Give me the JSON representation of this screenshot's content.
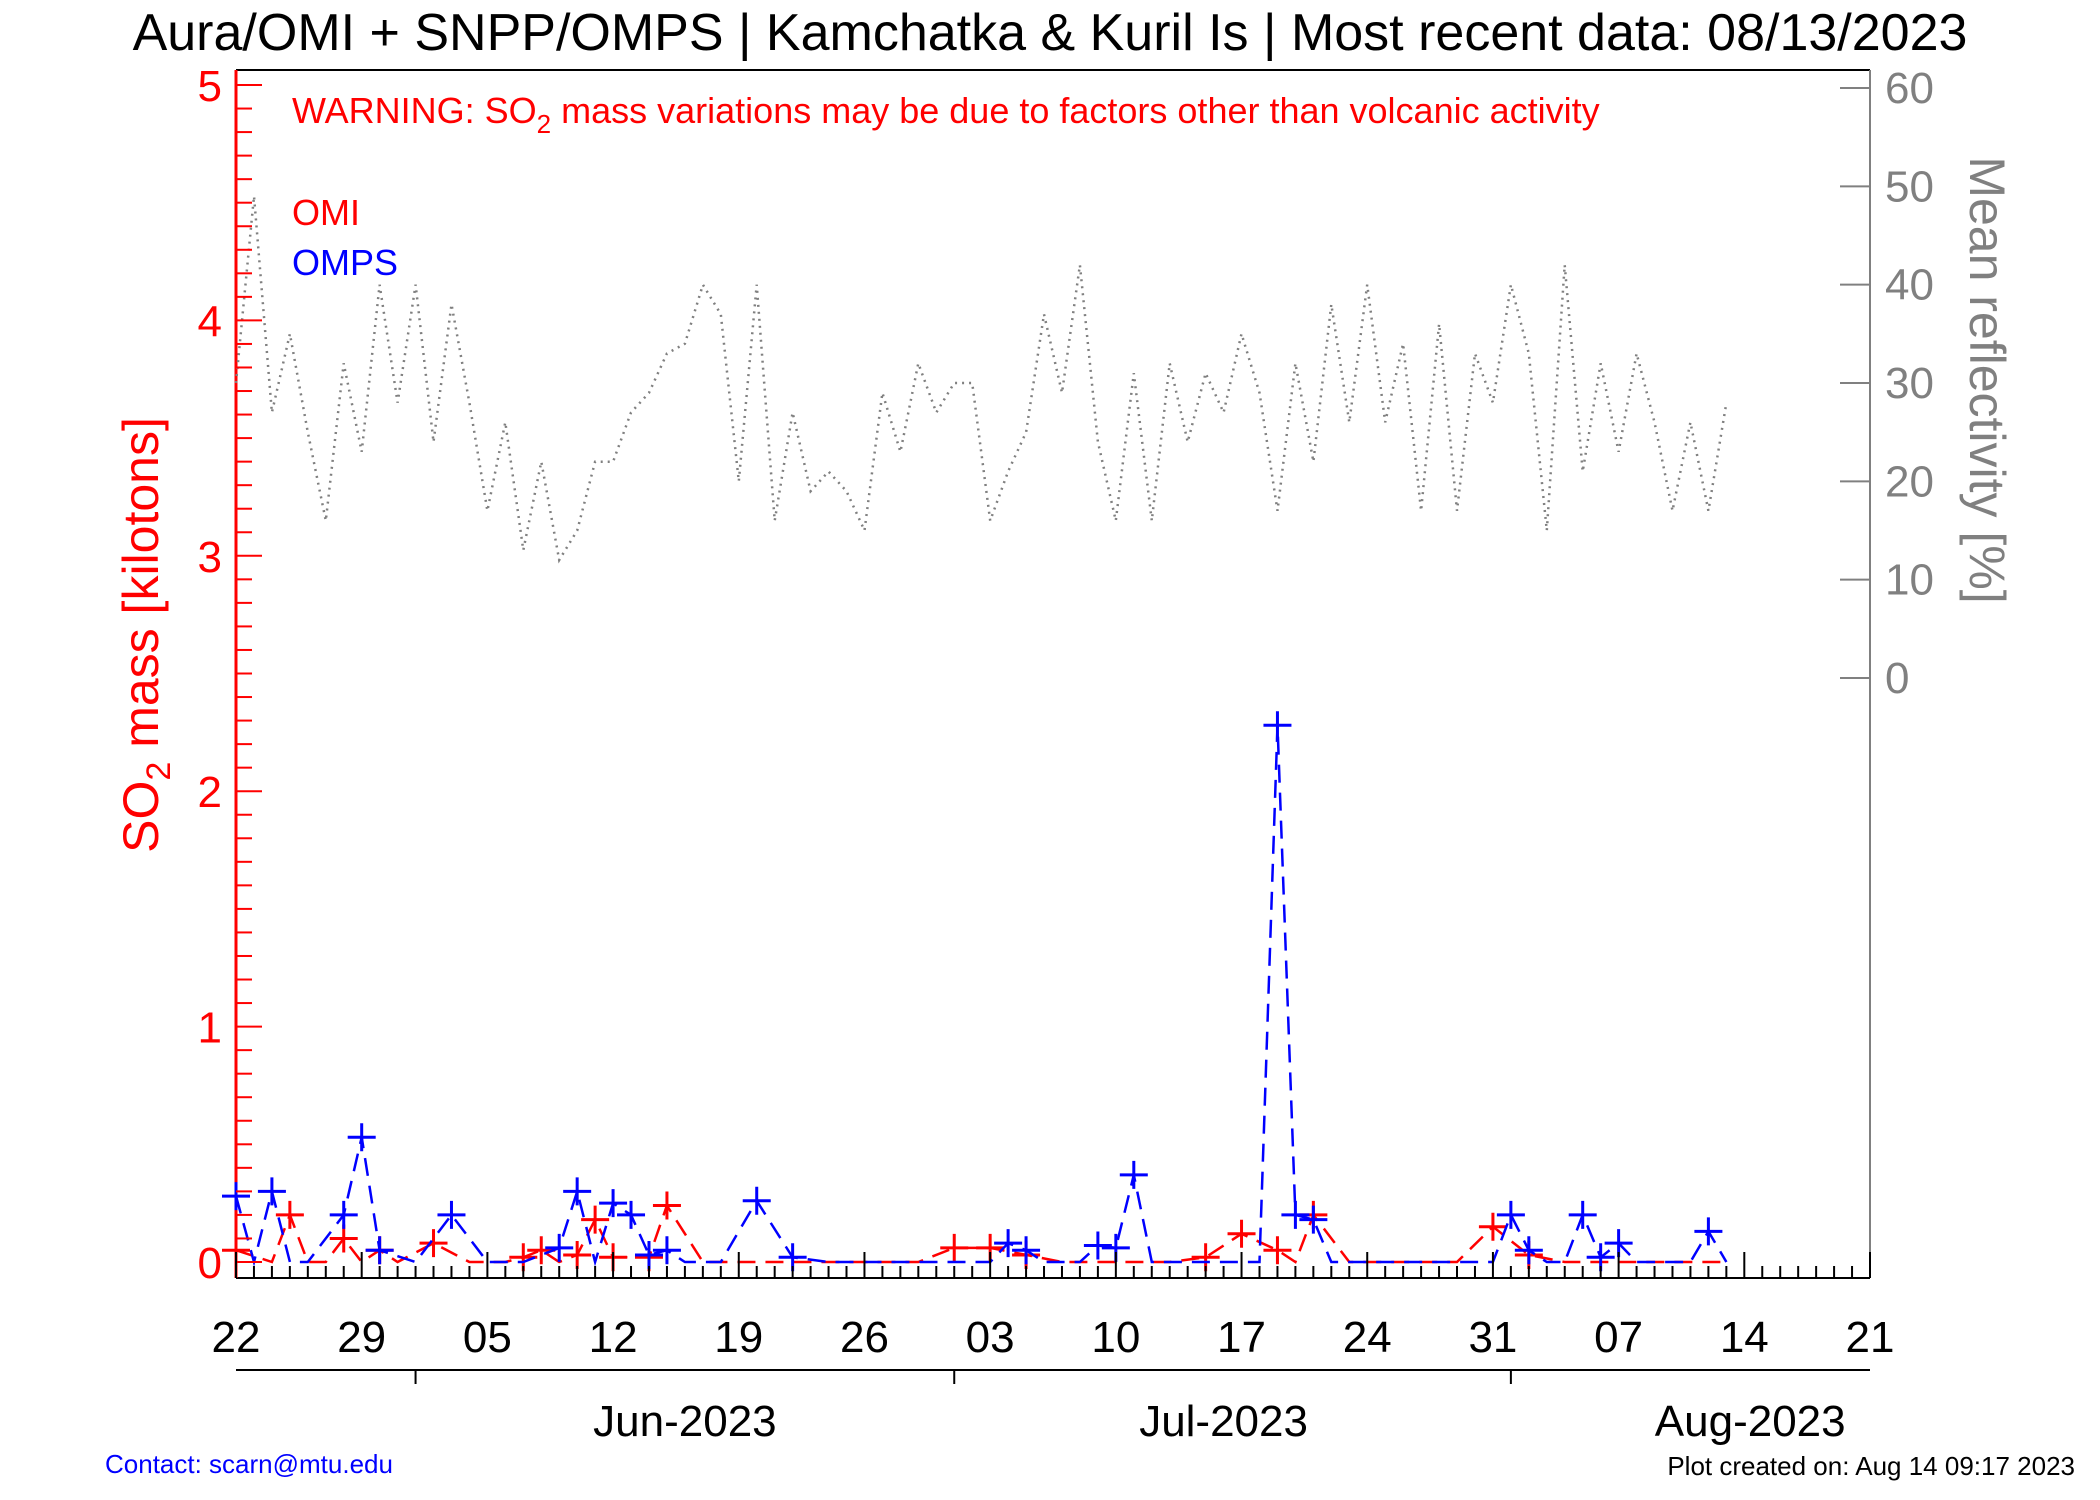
{
  "title": "Aura/OMI + SNPP/OMPS | Kamchatka & Kuril Is | Most recent data: 08/13/2023",
  "warning": {
    "prefix": "WARNING: SO",
    "subscript": "2",
    "suffix": " mass variations may be due to factors other than volcanic activity"
  },
  "contact": "Contact: scarn@mtu.edu",
  "created": "Plot created on: Aug 14 09:17 2023",
  "colors": {
    "omi": "#ff0000",
    "omps": "#0000ff",
    "reflectivity": "#808080",
    "axis": "#000000"
  },
  "chart_data": {
    "type": "line",
    "title": "Aura/OMI + SNPP/OMPS | Kamchatka & Kuril Is | Most recent data: 08/13/2023",
    "x_start": "2023-05-22",
    "x_end": "2023-08-21",
    "x_tick_labels": [
      "22",
      "29",
      "05",
      "12",
      "19",
      "26",
      "03",
      "10",
      "17",
      "24",
      "31",
      "07",
      "14",
      "21"
    ],
    "month_labels": [
      "Jun-2023",
      "Jul-2023",
      "Aug-2023"
    ],
    "y_left": {
      "label_prefix": "SO",
      "label_sub": "2",
      "label_suffix": " mass [kilotons]",
      "min": 0,
      "max": 5,
      "ticks": [
        "0",
        "1",
        "2",
        "3",
        "4",
        "5"
      ]
    },
    "y_right": {
      "label": "Mean reflectivity [%]",
      "min": 0,
      "max": 60,
      "ticks": [
        "0",
        "10",
        "20",
        "30",
        "40",
        "50",
        "60"
      ]
    },
    "series": [
      {
        "name": "OMI",
        "axis": "left",
        "style": "dashed",
        "marker": "+",
        "x": [
          "2023-05-22",
          "2023-05-24",
          "2023-05-25",
          "2023-05-26",
          "2023-05-27",
          "2023-05-28",
          "2023-05-29",
          "2023-05-30",
          "2023-05-31",
          "2023-06-02",
          "2023-06-04",
          "2023-06-06",
          "2023-06-07",
          "2023-06-08",
          "2023-06-09",
          "2023-06-10",
          "2023-06-11",
          "2023-06-12",
          "2023-06-14",
          "2023-06-15",
          "2023-06-17",
          "2023-06-19",
          "2023-06-21",
          "2023-06-25",
          "2023-06-27",
          "2023-06-29",
          "2023-07-01",
          "2023-07-03",
          "2023-07-05",
          "2023-07-07",
          "2023-07-09",
          "2023-07-11",
          "2023-07-13",
          "2023-07-15",
          "2023-07-17",
          "2023-07-19",
          "2023-07-20",
          "2023-07-21",
          "2023-07-23",
          "2023-07-25",
          "2023-07-27",
          "2023-07-29",
          "2023-07-31",
          "2023-08-02",
          "2023-08-04",
          "2023-08-06",
          "2023-08-08",
          "2023-08-10",
          "2023-08-12",
          "2023-08-13"
        ],
        "values": [
          0.05,
          0.0,
          0.2,
          0.0,
          0.0,
          0.1,
          0.0,
          0.05,
          0.0,
          0.08,
          0.0,
          0.0,
          0.02,
          0.05,
          0.0,
          0.03,
          0.18,
          0.02,
          0.02,
          0.24,
          0.0,
          0.0,
          0.0,
          0.0,
          0.0,
          0.0,
          0.06,
          0.06,
          0.03,
          0.0,
          0.0,
          0.0,
          0.0,
          0.02,
          0.12,
          0.05,
          0.0,
          0.2,
          0.0,
          0.0,
          0.0,
          0.0,
          0.15,
          0.03,
          0.0,
          0.0,
          0.0,
          0.0,
          0.0,
          0.0
        ]
      },
      {
        "name": "OMPS",
        "axis": "left",
        "style": "dashed",
        "marker": "+",
        "x": [
          "2023-05-22",
          "2023-05-23",
          "2023-05-24",
          "2023-05-25",
          "2023-05-26",
          "2023-05-28",
          "2023-05-29",
          "2023-05-30",
          "2023-06-01",
          "2023-06-03",
          "2023-06-05",
          "2023-06-07",
          "2023-06-09",
          "2023-06-10",
          "2023-06-11",
          "2023-06-12",
          "2023-06-13",
          "2023-06-14",
          "2023-06-15",
          "2023-06-16",
          "2023-06-18",
          "2023-06-20",
          "2023-06-22",
          "2023-06-24",
          "2023-06-26",
          "2023-06-28",
          "2023-06-30",
          "2023-07-02",
          "2023-07-03",
          "2023-07-04",
          "2023-07-05",
          "2023-07-06",
          "2023-07-08",
          "2023-07-09",
          "2023-07-10",
          "2023-07-11",
          "2023-07-12",
          "2023-07-13",
          "2023-07-15",
          "2023-07-17",
          "2023-07-18",
          "2023-07-19",
          "2023-07-20",
          "2023-07-21",
          "2023-07-22",
          "2023-07-24",
          "2023-07-27",
          "2023-07-29",
          "2023-07-31",
          "2023-08-01",
          "2023-08-02",
          "2023-08-03",
          "2023-08-04",
          "2023-08-05",
          "2023-08-06",
          "2023-08-07",
          "2023-08-08",
          "2023-08-09",
          "2023-08-10",
          "2023-08-11",
          "2023-08-12",
          "2023-08-13"
        ],
        "values": [
          0.28,
          0.0,
          0.3,
          0.0,
          0.0,
          0.2,
          0.53,
          0.05,
          0.0,
          0.2,
          0.0,
          0.0,
          0.06,
          0.3,
          0.0,
          0.25,
          0.2,
          0.03,
          0.05,
          0.0,
          0.0,
          0.26,
          0.02,
          0.0,
          0.0,
          0.0,
          0.0,
          0.0,
          0.0,
          0.08,
          0.05,
          0.0,
          0.0,
          0.07,
          0.06,
          0.37,
          0.0,
          0.0,
          0.0,
          0.0,
          0.0,
          2.28,
          0.2,
          0.18,
          0.0,
          0.0,
          0.0,
          0.0,
          0.0,
          0.2,
          0.05,
          0.0,
          0.0,
          0.2,
          0.02,
          0.08,
          0.0,
          0.0,
          0.0,
          0.0,
          0.13,
          0.0
        ]
      },
      {
        "name": "Mean reflectivity",
        "axis": "right",
        "style": "dotted",
        "x": [
          "2023-05-22",
          "2023-05-23",
          "2023-05-24",
          "2023-05-25",
          "2023-05-26",
          "2023-05-27",
          "2023-05-28",
          "2023-05-29",
          "2023-05-30",
          "2023-05-31",
          "2023-06-01",
          "2023-06-02",
          "2023-06-03",
          "2023-06-04",
          "2023-06-05",
          "2023-06-06",
          "2023-06-07",
          "2023-06-08",
          "2023-06-09",
          "2023-06-10",
          "2023-06-11",
          "2023-06-12",
          "2023-06-13",
          "2023-06-14",
          "2023-06-15",
          "2023-06-16",
          "2023-06-17",
          "2023-06-18",
          "2023-06-19",
          "2023-06-20",
          "2023-06-21",
          "2023-06-22",
          "2023-06-23",
          "2023-06-24",
          "2023-06-25",
          "2023-06-26",
          "2023-06-27",
          "2023-06-28",
          "2023-06-29",
          "2023-06-30",
          "2023-07-01",
          "2023-07-02",
          "2023-07-03",
          "2023-07-04",
          "2023-07-05",
          "2023-07-06",
          "2023-07-07",
          "2023-07-08",
          "2023-07-09",
          "2023-07-10",
          "2023-07-11",
          "2023-07-12",
          "2023-07-13",
          "2023-07-14",
          "2023-07-15",
          "2023-07-16",
          "2023-07-17",
          "2023-07-18",
          "2023-07-19",
          "2023-07-20",
          "2023-07-21",
          "2023-07-22",
          "2023-07-23",
          "2023-07-24",
          "2023-07-25",
          "2023-07-26",
          "2023-07-27",
          "2023-07-28",
          "2023-07-29",
          "2023-07-30",
          "2023-07-31",
          "2023-08-01",
          "2023-08-02",
          "2023-08-03",
          "2023-08-04",
          "2023-08-05",
          "2023-08-06",
          "2023-08-07",
          "2023-08-08",
          "2023-08-09",
          "2023-08-10",
          "2023-08-11",
          "2023-08-12",
          "2023-08-13"
        ],
        "values": [
          30,
          49,
          27,
          35,
          25,
          16,
          32,
          23,
          40,
          28,
          40,
          24,
          38,
          28,
          17,
          26,
          13,
          22,
          12,
          15,
          22,
          22,
          27,
          29,
          33,
          34,
          40,
          37,
          20,
          40,
          16,
          27,
          19,
          21,
          19,
          15,
          29,
          23,
          32,
          27,
          30,
          30,
          16,
          21,
          25,
          37,
          29,
          42,
          24,
          16,
          31,
          16,
          32,
          24,
          31,
          27,
          35,
          29,
          17,
          32,
          22,
          38,
          26,
          40,
          26,
          34,
          17,
          36,
          17,
          33,
          28,
          40,
          33,
          15,
          42,
          21,
          32,
          23,
          33,
          26,
          17,
          26,
          17,
          28
        ]
      }
    ]
  }
}
